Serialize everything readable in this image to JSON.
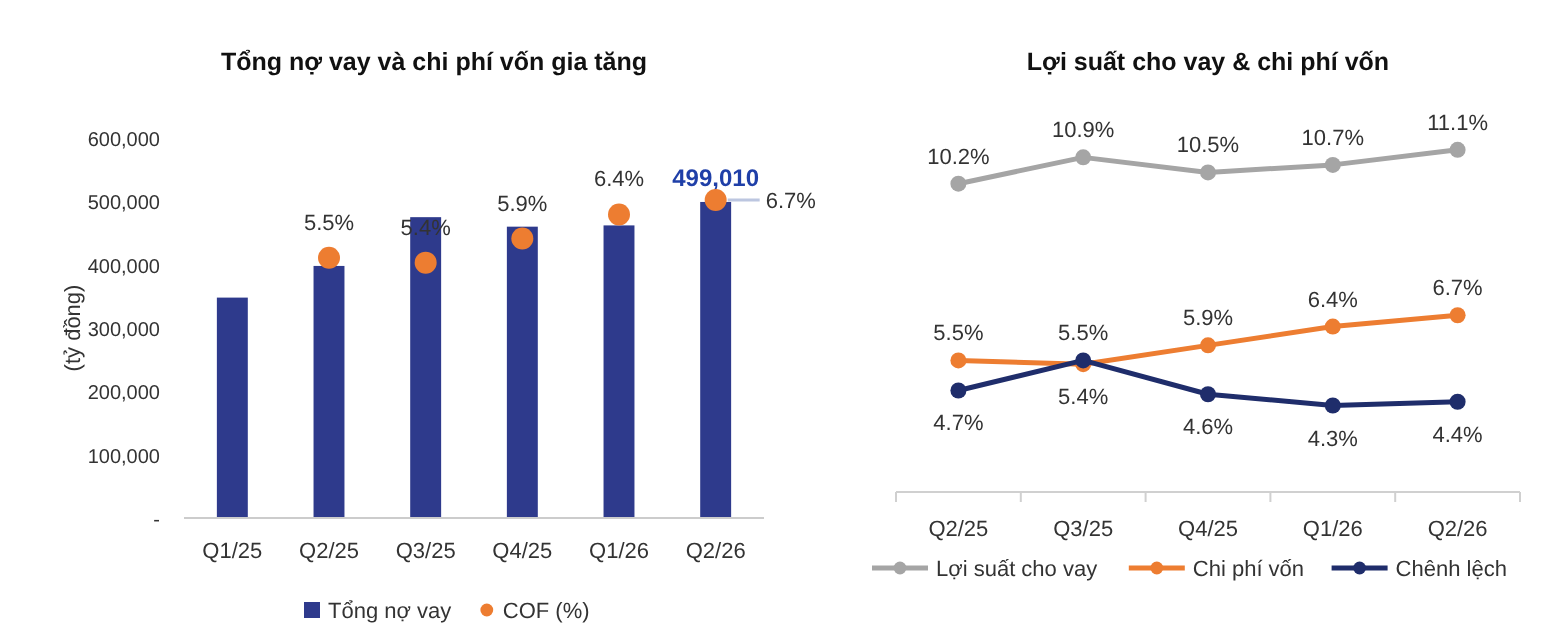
{
  "chart_data": [
    {
      "type": "bar",
      "title": "Tổng nợ vay và chi phí vốn gia tăng",
      "ylabel": "(tỷ đồng)",
      "categories": [
        "Q1/25",
        "Q2/25",
        "Q3/25",
        "Q4/25",
        "Q1/26",
        "Q2/26"
      ],
      "series": [
        {
          "name": "Tổng nợ vay",
          "type": "bar",
          "color": "#2e3a8c",
          "values": [
            348000,
            398000,
            475000,
            460000,
            462000,
            499010
          ],
          "value_labels": [
            null,
            null,
            null,
            null,
            null,
            "499,010"
          ]
        },
        {
          "name": "COF (%)",
          "type": "scatter",
          "axis": "y2",
          "color": "#ed7d31",
          "values": [
            null,
            5.5,
            5.4,
            5.9,
            6.4,
            6.7
          ],
          "value_labels": [
            null,
            "5.5%",
            "5.4%",
            "5.9%",
            "6.4%",
            "6.7%"
          ]
        }
      ],
      "ylim": [
        0,
        600000
      ],
      "yticks": [
        {
          "value": 0,
          "label": "-"
        },
        {
          "value": 100000,
          "label": "100,000"
        },
        {
          "value": 200000,
          "label": "200,000"
        },
        {
          "value": 300000,
          "label": "300,000"
        },
        {
          "value": 400000,
          "label": "400,000"
        },
        {
          "value": 500000,
          "label": "500,000"
        },
        {
          "value": 600000,
          "label": "600,000"
        }
      ],
      "marker": "circle",
      "legend": "bottom",
      "grid": false
    },
    {
      "type": "line",
      "title": "Lợi suất cho vay & chi phí vốn",
      "categories": [
        "Q2/25",
        "Q3/25",
        "Q4/25",
        "Q1/26",
        "Q2/26"
      ],
      "series": [
        {
          "name": "Lợi suất cho vay",
          "color": "#a5a5a5",
          "values": [
            10.2,
            10.9,
            10.5,
            10.7,
            11.1
          ],
          "value_labels": [
            "10.2%",
            "10.9%",
            "10.5%",
            "10.7%",
            "11.1%"
          ]
        },
        {
          "name": "Chi phí vốn",
          "color": "#ed7d31",
          "values": [
            5.5,
            5.4,
            5.9,
            6.4,
            6.7
          ],
          "value_labels": [
            "5.5%",
            "5.4%",
            "5.9%",
            "6.4%",
            "6.7%"
          ]
        },
        {
          "name": "Chênh lệch",
          "color": "#1f2d6b",
          "values": [
            4.7,
            5.5,
            4.6,
            4.3,
            4.4
          ],
          "value_labels": [
            "4.7%",
            "5.5%",
            "4.6%",
            "4.3%",
            "4.4%"
          ]
        }
      ],
      "tick_labels": "x",
      "marker": "circle",
      "line_style": "solid",
      "legend": "bottom",
      "grid": false
    }
  ]
}
